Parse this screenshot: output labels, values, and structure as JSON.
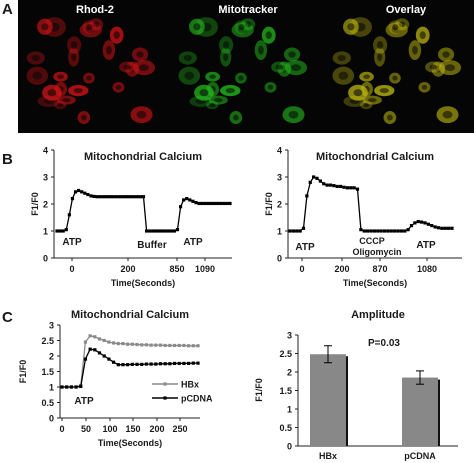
{
  "panels": {
    "A": "A",
    "B": "B",
    "C": "C"
  },
  "panel_a": {
    "images": [
      {
        "label": "Rhod-2",
        "color": "#e0151a"
      },
      {
        "label": "Mitotracker",
        "color": "#27c31f"
      },
      {
        "label": "Overlay",
        "color": "#c8c213"
      }
    ]
  },
  "chart_data": [
    {
      "id": "b_left",
      "type": "line",
      "title": "Mitochondrial Calcium",
      "xlabel": "Time(Seconds)",
      "ylabel": "F1/F0",
      "ylim": [
        0,
        4
      ],
      "yticks": [
        "0",
        "1",
        "2",
        "3",
        "4"
      ],
      "xticks": [
        "0",
        "200",
        "850",
        "1090"
      ],
      "annotations": [
        "ATP",
        "Buffer",
        "ATP"
      ],
      "series": [
        {
          "color": "#000000",
          "values": [
            1.0,
            1.0,
            1.0,
            1.05,
            1.6,
            2.2,
            2.45,
            2.5,
            2.45,
            2.4,
            2.35,
            2.3,
            2.28,
            2.27,
            2.27,
            2.27,
            2.27,
            2.27,
            2.27,
            2.27,
            2.27,
            2.27,
            2.27,
            2.27,
            2.27,
            2.27,
            2.27,
            2.27,
            2.27,
            1.0,
            1.0,
            1.0,
            1.0,
            1.0,
            1.0,
            1.0,
            1.0,
            1.0,
            1.0,
            1.05,
            1.9,
            2.15,
            2.2,
            2.15,
            2.1,
            2.05,
            2.02,
            2.02,
            2.02,
            2.02,
            2.02,
            2.02,
            2.02,
            2.02,
            2.02,
            2.02,
            2.02
          ]
        }
      ]
    },
    {
      "id": "b_right",
      "type": "line",
      "title": "Mitochondrial Calcium",
      "xlabel": "Time(Seconds)",
      "ylabel": "F1/F0",
      "ylim": [
        0,
        4
      ],
      "yticks": [
        "0",
        "1",
        "2",
        "3",
        "4"
      ],
      "xticks": [
        "0",
        "200",
        "870",
        "1080"
      ],
      "annotations": [
        "ATP",
        "CCCP",
        "Oligomycin",
        "ATP"
      ],
      "series": [
        {
          "color": "#000000",
          "values": [
            1.0,
            1.0,
            1.0,
            1.0,
            1.1,
            2.3,
            2.8,
            3.0,
            2.95,
            2.85,
            2.75,
            2.7,
            2.7,
            2.68,
            2.65,
            2.65,
            2.62,
            2.6,
            2.6,
            2.6,
            2.55,
            1.05,
            1.0,
            1.0,
            1.0,
            1.0,
            1.0,
            1.0,
            1.0,
            1.0,
            1.0,
            1.0,
            1.0,
            1.0,
            1.0,
            1.05,
            1.2,
            1.3,
            1.35,
            1.33,
            1.3,
            1.25,
            1.2,
            1.15,
            1.12,
            1.1,
            1.1,
            1.1,
            1.1
          ]
        }
      ]
    },
    {
      "id": "c_left",
      "type": "line",
      "title": "Mitochondrial Calcium",
      "xlabel": "Time(Seconds)",
      "ylabel": "F1/F0",
      "xlim": [
        0,
        290
      ],
      "ylim": [
        0,
        3
      ],
      "yticks": [
        "0",
        "0.5",
        "1",
        "1.5",
        "2",
        "2.5",
        "3"
      ],
      "xticks": [
        "0",
        "50",
        "100",
        "150",
        "200",
        "250"
      ],
      "annotations": [
        "ATP"
      ],
      "legend": "bottom-right",
      "x": [
        0,
        10,
        20,
        30,
        40,
        50,
        60,
        70,
        80,
        90,
        100,
        110,
        120,
        130,
        140,
        150,
        160,
        170,
        180,
        190,
        200,
        210,
        220,
        230,
        240,
        250,
        260,
        270,
        280,
        290
      ],
      "series": [
        {
          "name": "HBx",
          "color": "#8a8a8a",
          "values": [
            1.0,
            1.0,
            1.0,
            1.0,
            1.05,
            2.45,
            2.65,
            2.62,
            2.55,
            2.5,
            2.45,
            2.42,
            2.4,
            2.4,
            2.38,
            2.38,
            2.37,
            2.36,
            2.36,
            2.35,
            2.35,
            2.35,
            2.34,
            2.34,
            2.34,
            2.34,
            2.34,
            2.33,
            2.33,
            2.33
          ]
        },
        {
          "name": "pCDNA",
          "color": "#000000",
          "values": [
            1.0,
            1.0,
            1.0,
            1.0,
            1.02,
            1.9,
            2.22,
            2.2,
            2.1,
            2.0,
            1.9,
            1.8,
            1.72,
            1.72,
            1.72,
            1.73,
            1.73,
            1.73,
            1.74,
            1.74,
            1.74,
            1.75,
            1.75,
            1.75,
            1.76,
            1.76,
            1.76,
            1.76,
            1.77,
            1.77
          ]
        }
      ]
    },
    {
      "id": "c_right",
      "type": "bar",
      "title": "Amplitude",
      "ylabel": "F1/F0",
      "ylim": [
        0,
        3
      ],
      "yticks": [
        "0",
        "0.5",
        "1",
        "1.5",
        "2",
        "2.5",
        "3"
      ],
      "categories": [
        "HBx",
        "pCDNA"
      ],
      "values": [
        2.48,
        1.85
      ],
      "errors": [
        0.23,
        0.18
      ],
      "bar_color": "#888888",
      "annotation": "P=0.03"
    }
  ]
}
